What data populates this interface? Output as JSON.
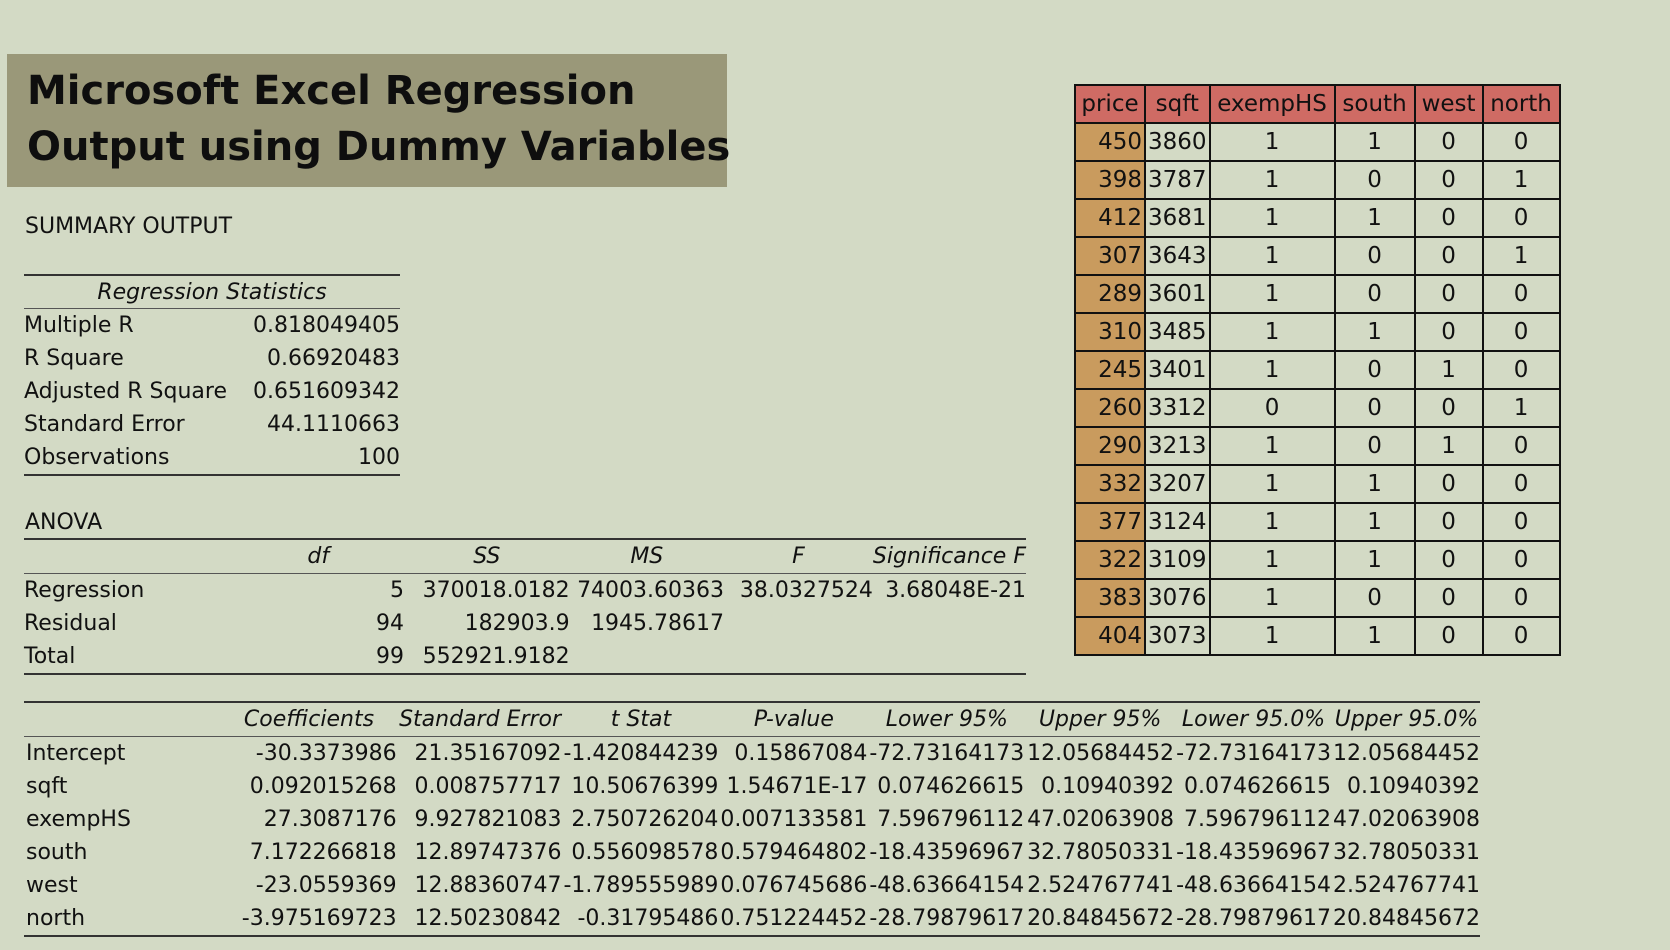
{
  "title": {
    "line1": "Microsoft Excel Regression",
    "line2": "Output using Dummy Variables"
  },
  "summary_label": "SUMMARY OUTPUT",
  "regression_stats": {
    "header": "Regression Statistics",
    "rows": [
      {
        "label": "Multiple R",
        "value": "0.818049405"
      },
      {
        "label": "R Square",
        "value": "0.66920483"
      },
      {
        "label": "Adjusted R Square",
        "value": "0.651609342"
      },
      {
        "label": "Standard Error",
        "value": "44.1110663"
      },
      {
        "label": "Observations",
        "value": "100"
      }
    ]
  },
  "anova": {
    "label": "ANOVA",
    "headers": [
      "",
      "df",
      "SS",
      "MS",
      "F",
      "Significance F"
    ],
    "rows": [
      [
        "Regression",
        "5",
        "370018.0182",
        "74003.60363",
        "38.0327524",
        "3.68048E-21"
      ],
      [
        "Residual",
        "94",
        "182903.9",
        "1945.78617",
        "",
        ""
      ],
      [
        "Total",
        "99",
        "552921.9182",
        "",
        "",
        ""
      ]
    ]
  },
  "coefficients": {
    "headers": [
      "",
      "Coefficients",
      "Standard Error",
      "t Stat",
      "P-value",
      "Lower 95%",
      "Upper 95%",
      "Lower 95.0%",
      "Upper 95.0%"
    ],
    "rows": [
      [
        "Intercept",
        "-30.3373986",
        "21.35167092",
        "-1.420844239",
        "0.15867084",
        "-72.73164173",
        "12.05684452",
        "-72.73164173",
        "12.05684452"
      ],
      [
        "sqft",
        "0.092015268",
        "0.008757717",
        "10.50676399",
        "1.54671E-17",
        "0.074626615",
        "0.10940392",
        "0.074626615",
        "0.10940392"
      ],
      [
        "exempHS",
        "27.3087176",
        "9.927821083",
        "2.750726204",
        "0.007133581",
        "7.596796112",
        "47.02063908",
        "7.596796112",
        "47.02063908"
      ],
      [
        "south",
        "7.172266818",
        "12.89747376",
        "0.556098578",
        "0.579464802",
        "-18.43596967",
        "32.78050331",
        "-18.43596967",
        "32.78050331"
      ],
      [
        "west",
        "-23.0559369",
        "12.88360747",
        "-1.789555989",
        "0.076745686",
        "-48.63664154",
        "2.524767741",
        "-48.63664154",
        "2.524767741"
      ],
      [
        "north",
        "-3.975169723",
        "12.50230842",
        "-0.31795486",
        "0.751224452",
        "-28.79879617",
        "20.84845672",
        "-28.79879617",
        "20.84845672"
      ]
    ]
  },
  "data_table": {
    "headers": [
      "price",
      "sqft",
      "exempHS",
      "south",
      "west",
      "north"
    ],
    "rows": [
      [
        "450",
        "3860",
        "1",
        "1",
        "0",
        "0"
      ],
      [
        "398",
        "3787",
        "1",
        "0",
        "0",
        "1"
      ],
      [
        "412",
        "3681",
        "1",
        "1",
        "0",
        "0"
      ],
      [
        "307",
        "3643",
        "1",
        "0",
        "0",
        "1"
      ],
      [
        "289",
        "3601",
        "1",
        "0",
        "0",
        "0"
      ],
      [
        "310",
        "3485",
        "1",
        "1",
        "0",
        "0"
      ],
      [
        "245",
        "3401",
        "1",
        "0",
        "1",
        "0"
      ],
      [
        "260",
        "3312",
        "0",
        "0",
        "0",
        "1"
      ],
      [
        "290",
        "3213",
        "1",
        "0",
        "1",
        "0"
      ],
      [
        "332",
        "3207",
        "1",
        "1",
        "0",
        "0"
      ],
      [
        "377",
        "3124",
        "1",
        "1",
        "0",
        "0"
      ],
      [
        "322",
        "3109",
        "1",
        "1",
        "0",
        "0"
      ],
      [
        "383",
        "3076",
        "1",
        "0",
        "0",
        "0"
      ],
      [
        "404",
        "3073",
        "1",
        "1",
        "0",
        "0"
      ]
    ]
  }
}
